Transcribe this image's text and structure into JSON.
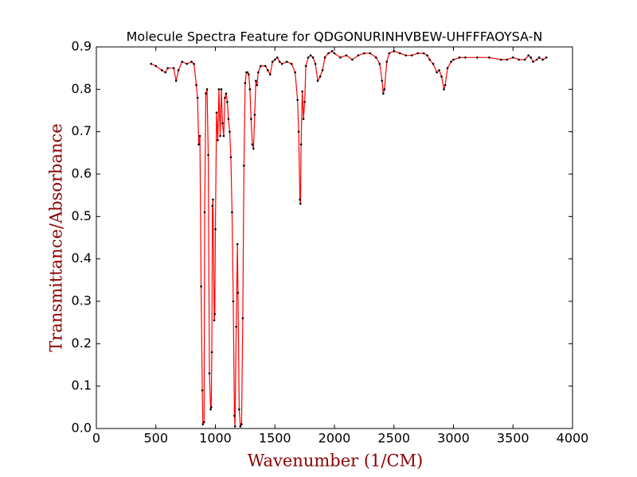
{
  "chart_data": {
    "type": "line",
    "title": "Molecule Spectra Feature for QDGONURINHVBEW-UHFFFAOYSA-N",
    "x_label": "Wavenumber (1/CM)",
    "y_label": "Transmittance/Absorbance",
    "xlim": [
      0,
      4000
    ],
    "xticks": [
      0,
      500,
      1000,
      1500,
      2000,
      2500,
      3000,
      3500,
      4000
    ],
    "ylim": [
      0,
      0.9
    ],
    "yticks": [
      {
        "value": 0,
        "label": "0.0"
      },
      0.1,
      0.2,
      0.3,
      0.4,
      0.5,
      0.6,
      0.7,
      0.8,
      0.9
    ],
    "series": [
      {
        "color": "#ff0000",
        "marker_color": "#000000",
        "x": [
          460,
          500,
          550,
          580,
          600,
          650,
          670,
          690,
          720,
          760,
          800,
          820,
          840,
          850,
          860,
          870,
          880,
          890,
          895,
          905,
          910,
          920,
          930,
          940,
          950,
          960,
          965,
          970,
          975,
          980,
          990,
          995,
          1000,
          1010,
          1020,
          1030,
          1040,
          1050,
          1060,
          1070,
          1080,
          1090,
          1100,
          1110,
          1120,
          1130,
          1140,
          1150,
          1160,
          1165,
          1175,
          1185,
          1190,
          1200,
          1210,
          1220,
          1230,
          1240,
          1250,
          1260,
          1270,
          1280,
          1290,
          1300,
          1310,
          1320,
          1330,
          1340,
          1350,
          1360,
          1380,
          1420,
          1440,
          1460,
          1480,
          1500,
          1520,
          1540,
          1560,
          1600,
          1640,
          1670,
          1690,
          1700,
          1710,
          1715,
          1720,
          1730,
          1740,
          1750,
          1760,
          1780,
          1800,
          1820,
          1840,
          1860,
          1880,
          1900,
          1920,
          1950,
          1980,
          2000,
          2050,
          2100,
          2150,
          2200,
          2250,
          2300,
          2350,
          2380,
          2400,
          2410,
          2420,
          2440,
          2460,
          2500,
          2550,
          2600,
          2650,
          2700,
          2750,
          2780,
          2800,
          2830,
          2860,
          2880,
          2900,
          2920,
          2930,
          2950,
          2980,
          3000,
          3050,
          3100,
          3200,
          3300,
          3400,
          3450,
          3500,
          3550,
          3600,
          3630,
          3650,
          3670,
          3700,
          3720,
          3750,
          3780
        ],
        "values": [
          0.86,
          0.855,
          0.845,
          0.84,
          0.85,
          0.85,
          0.82,
          0.845,
          0.865,
          0.86,
          0.865,
          0.86,
          0.81,
          0.78,
          0.67,
          0.69,
          0.335,
          0.09,
          0.01,
          0.015,
          0.51,
          0.79,
          0.8,
          0.645,
          0.13,
          0.045,
          0.05,
          0.18,
          0.525,
          0.54,
          0.255,
          0.27,
          0.47,
          0.745,
          0.68,
          0.8,
          0.69,
          0.8,
          0.72,
          0.69,
          0.78,
          0.79,
          0.77,
          0.73,
          0.7,
          0.64,
          0.51,
          0.3,
          0.03,
          0.005,
          0.24,
          0.435,
          0.32,
          0.045,
          0.005,
          0.01,
          0.26,
          0.62,
          0.815,
          0.84,
          0.84,
          0.835,
          0.8,
          0.73,
          0.67,
          0.66,
          0.74,
          0.82,
          0.81,
          0.84,
          0.855,
          0.855,
          0.845,
          0.835,
          0.865,
          0.87,
          0.875,
          0.865,
          0.86,
          0.865,
          0.86,
          0.84,
          0.775,
          0.7,
          0.54,
          0.53,
          0.67,
          0.795,
          0.73,
          0.77,
          0.855,
          0.875,
          0.88,
          0.875,
          0.86,
          0.82,
          0.83,
          0.845,
          0.875,
          0.885,
          0.89,
          0.885,
          0.875,
          0.88,
          0.87,
          0.88,
          0.885,
          0.885,
          0.875,
          0.86,
          0.82,
          0.79,
          0.8,
          0.865,
          0.885,
          0.89,
          0.885,
          0.88,
          0.88,
          0.885,
          0.885,
          0.88,
          0.87,
          0.86,
          0.84,
          0.845,
          0.83,
          0.8,
          0.81,
          0.85,
          0.865,
          0.87,
          0.875,
          0.875,
          0.875,
          0.875,
          0.87,
          0.87,
          0.875,
          0.87,
          0.87,
          0.88,
          0.875,
          0.865,
          0.87,
          0.875,
          0.87,
          0.875
        ]
      }
    ]
  }
}
